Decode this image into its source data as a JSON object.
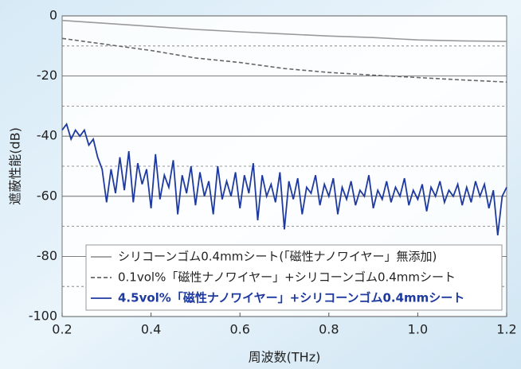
{
  "chart_data": {
    "type": "line",
    "xlabel": "周波数(THz)",
    "ylabel": "遮蔽性能(dB)",
    "xlim": [
      0.2,
      1.2
    ],
    "ylim": [
      -100,
      0
    ],
    "xticks": [
      0.2,
      0.4,
      0.6,
      0.8,
      {
        "value": 1,
        "label": "1.0"
      },
      1.2
    ],
    "yticks": [
      0,
      -20,
      -40,
      -60,
      -80,
      -100
    ],
    "minor_yticks": [
      -10,
      -30,
      -50,
      -70,
      -90
    ],
    "grid": true,
    "legend": "lower right",
    "series": [
      {
        "name": "シリコーンゴム0.4mmシート(「磁性ナノワイヤー」無添加)",
        "color": "#9a9a9a",
        "dash": false,
        "bold": false,
        "x": [
          0.2,
          0.3,
          0.4,
          0.5,
          0.6,
          0.7,
          0.8,
          0.9,
          1.0,
          1.1,
          1.2
        ],
        "values": [
          -1.5,
          -2.5,
          -3.5,
          -4.5,
          -5.3,
          -6,
          -6.7,
          -7.2,
          -8,
          -8.3,
          -8.5
        ]
      },
      {
        "name": "0.1vol%「磁性ナノワイヤー」+シリコーンゴム0.4mmシート",
        "color": "#666666",
        "dash": true,
        "bold": false,
        "x": [
          0.2,
          0.3,
          0.4,
          0.5,
          0.6,
          0.7,
          0.8,
          0.9,
          1.0,
          1.1,
          1.2
        ],
        "values": [
          -7.5,
          -9.5,
          -11.5,
          -14,
          -15.5,
          -17.5,
          -18.8,
          -19.7,
          -20.5,
          -21.3,
          -22
        ]
      },
      {
        "name": "4.5vol%「磁性ナノワイヤー」+シリコーンゴム0.4mmシート",
        "color": "#1f3a9e",
        "dash": false,
        "bold": true,
        "x": [
          0.2,
          0.21,
          0.22,
          0.23,
          0.24,
          0.25,
          0.26,
          0.27,
          0.28,
          0.29,
          0.3,
          0.31,
          0.32,
          0.33,
          0.34,
          0.35,
          0.36,
          0.37,
          0.38,
          0.39,
          0.4,
          0.41,
          0.42,
          0.43,
          0.44,
          0.45,
          0.46,
          0.47,
          0.48,
          0.49,
          0.5,
          0.51,
          0.52,
          0.53,
          0.54,
          0.55,
          0.56,
          0.57,
          0.58,
          0.59,
          0.6,
          0.61,
          0.62,
          0.63,
          0.64,
          0.65,
          0.66,
          0.67,
          0.68,
          0.69,
          0.7,
          0.71,
          0.72,
          0.73,
          0.74,
          0.75,
          0.76,
          0.77,
          0.78,
          0.79,
          0.8,
          0.81,
          0.82,
          0.83,
          0.84,
          0.85,
          0.86,
          0.87,
          0.88,
          0.89,
          0.9,
          0.91,
          0.92,
          0.93,
          0.94,
          0.95,
          0.96,
          0.97,
          0.98,
          0.99,
          1.0,
          1.01,
          1.02,
          1.03,
          1.04,
          1.05,
          1.06,
          1.07,
          1.08,
          1.09,
          1.1,
          1.11,
          1.12,
          1.13,
          1.14,
          1.15,
          1.16,
          1.17,
          1.18,
          1.19,
          1.2
        ],
        "values": [
          -38,
          -36,
          -41,
          -38,
          -40,
          -38,
          -43,
          -41,
          -47,
          -51,
          -62,
          -51,
          -59,
          -47,
          -58,
          -45,
          -62,
          -49,
          -56,
          -51,
          -64,
          -46,
          -61,
          -53,
          -57,
          -48,
          -66,
          -53,
          -59,
          -50,
          -63,
          -52,
          -60,
          -55,
          -66,
          -50,
          -61,
          -55,
          -60,
          -52,
          -64,
          -53,
          -59,
          -49,
          -68,
          -53,
          -60,
          -56,
          -62,
          -52,
          -71,
          -55,
          -61,
          -54,
          -66,
          -57,
          -59,
          -53,
          -63,
          -56,
          -60,
          -54,
          -66,
          -57,
          -61,
          -55,
          -63,
          -58,
          -60,
          -53,
          -64,
          -58,
          -61,
          -55,
          -62,
          -57,
          -60,
          -54,
          -63,
          -58,
          -61,
          -56,
          -65,
          -57,
          -60,
          -55,
          -62,
          -58,
          -60,
          -56,
          -63,
          -57,
          -62,
          -55,
          -60,
          -56,
          -64,
          -58,
          -73,
          -60,
          -57
        ]
      }
    ]
  }
}
